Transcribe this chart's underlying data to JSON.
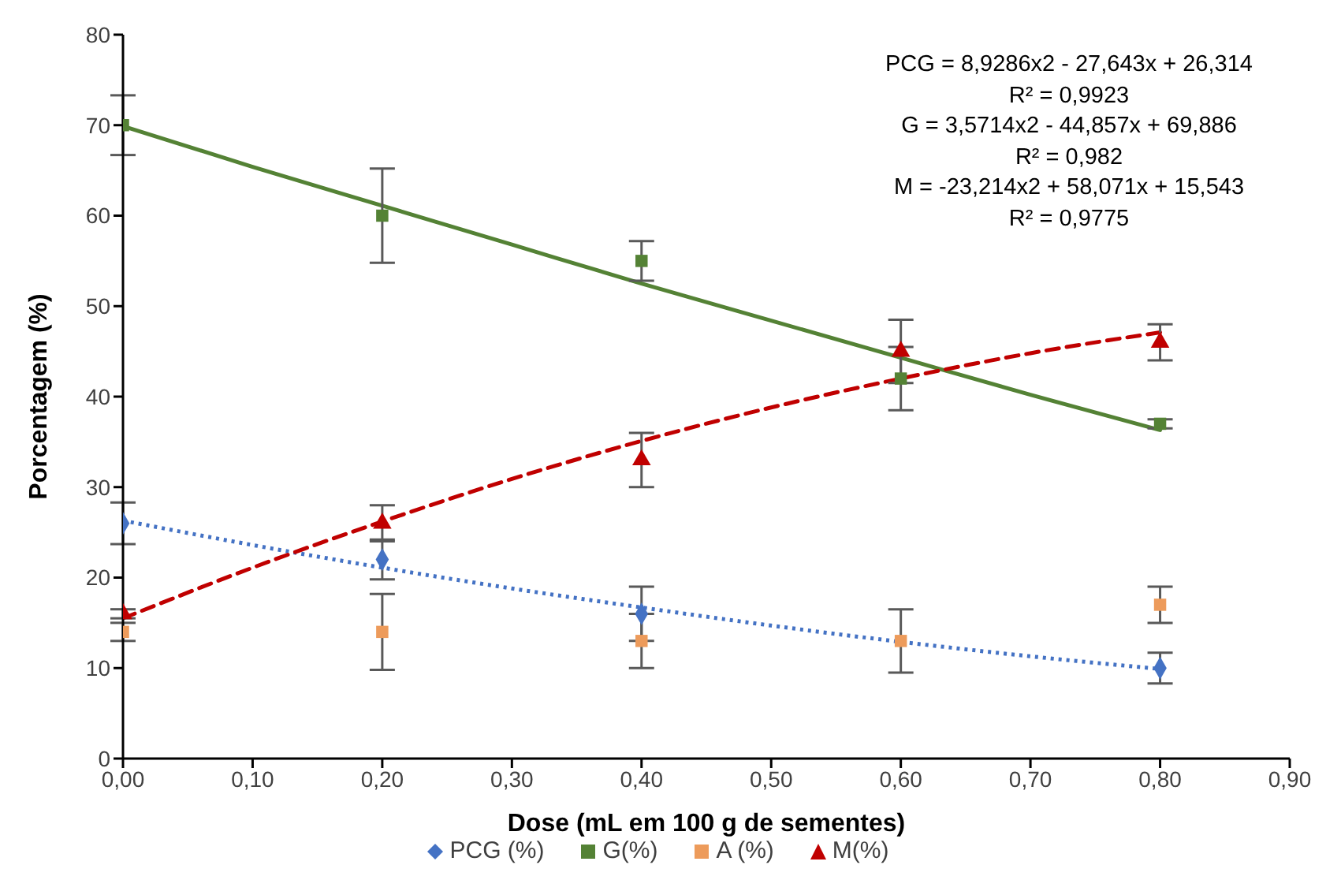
{
  "chart_data": {
    "type": "scatter",
    "xlabel": "Dose (mL em 100 g de sementes)",
    "ylabel": "Porcentagem (%)",
    "xlim": [
      0,
      0.9
    ],
    "xticks": [
      {
        "value": 0,
        "label": "0,00"
      },
      {
        "value": 0.1,
        "label": "0,10"
      },
      {
        "value": 0.2,
        "label": "0,20"
      },
      {
        "value": 0.3,
        "label": "0,30"
      },
      {
        "value": 0.4,
        "label": "0,40"
      },
      {
        "value": 0.5,
        "label": "0,50"
      },
      {
        "value": 0.6,
        "label": "0,60"
      },
      {
        "value": 0.7,
        "label": "0,70"
      },
      {
        "value": 0.8,
        "label": "0,80"
      },
      {
        "value": 0.9,
        "label": "0,90"
      }
    ],
    "ylim": [
      0,
      80
    ],
    "yticks": [
      0,
      10,
      20,
      30,
      40,
      50,
      60,
      70,
      80
    ],
    "grid": false,
    "legend": "bottom",
    "x": [
      0,
      0.2,
      0.4,
      0.6,
      0.8
    ],
    "series": [
      {
        "name": "PCG (%)",
        "color": "#4472c4",
        "marker": "diamond",
        "values": [
          26,
          22,
          16,
          null,
          10
        ],
        "errors": [
          2.3,
          2.2,
          3,
          null,
          1.7
        ]
      },
      {
        "name": "G(%)",
        "color": "#548235",
        "marker": "square",
        "values": [
          70,
          60,
          55,
          42,
          37
        ],
        "errors": [
          3.3,
          5.2,
          2.2,
          3.5,
          0.5
        ]
      },
      {
        "name": "A (%)",
        "color": "#ed9b5b",
        "marker": "square",
        "values": [
          14,
          14,
          13,
          13,
          17
        ],
        "errors": [
          1,
          4.2,
          3,
          3.5,
          2
        ]
      },
      {
        "name": "M(%)",
        "color": "#c00000",
        "marker": "triangle",
        "values": [
          16,
          26,
          33,
          45,
          46
        ],
        "errors": [
          0.5,
          2,
          3,
          3.5,
          2
        ]
      },
      {
        "type": "line",
        "color": "#4472c4",
        "line_style": "dotted",
        "marker": "none",
        "x": [
          0,
          0.1,
          0.2,
          0.3,
          0.4,
          0.5,
          0.6,
          0.7,
          0.8
        ],
        "values": [
          26.3,
          23.6,
          21.1,
          18.8,
          16.7,
          14.7,
          12.9,
          11.3,
          9.9
        ]
      },
      {
        "type": "line",
        "color": "#548235",
        "line_style": "solid",
        "marker": "none",
        "x": [
          0,
          0.1,
          0.2,
          0.3,
          0.4,
          0.5,
          0.6,
          0.7,
          0.8
        ],
        "values": [
          69.9,
          65.4,
          61.1,
          56.8,
          52.5,
          48.4,
          44.3,
          40.2,
          36.3
        ]
      },
      {
        "type": "line",
        "color": "#c00000",
        "line_style": "dashed",
        "marker": "none",
        "x": [
          0,
          0.1,
          0.2,
          0.3,
          0.4,
          0.5,
          0.6,
          0.7,
          0.8
        ],
        "values": [
          15.5,
          21.1,
          26.2,
          30.9,
          35.1,
          38.8,
          42.0,
          44.8,
          47.1
        ]
      }
    ],
    "annotations": [
      "PCG = 8,9286x2 - 27,643x + 26,314",
      "R² = 0,9923",
      "G = 3,5714x2 - 44,857x + 69,886",
      "R² = 0,982",
      "M = -23,214x2 + 58,071x + 15,543",
      "R² = 0,9775"
    ]
  }
}
